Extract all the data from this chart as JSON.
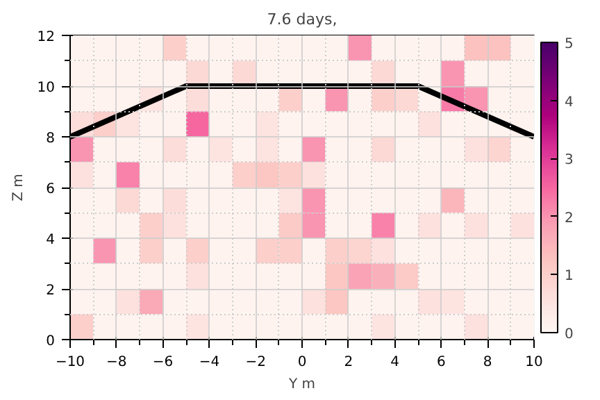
{
  "chart_data": {
    "type": "heatmap",
    "title": "7.6 days,",
    "xlabel": "Y m",
    "ylabel": "Z m",
    "xlim": [
      -10,
      10
    ],
    "ylim": [
      0,
      12
    ],
    "xticks": [
      -10,
      -8,
      -6,
      -4,
      -2,
      0,
      2,
      4,
      6,
      8,
      10
    ],
    "yticks": [
      0,
      2,
      4,
      6,
      8,
      10,
      12
    ],
    "clim": [
      0,
      5
    ],
    "cticks": [
      0,
      1,
      2,
      3,
      4,
      5
    ],
    "grid": true,
    "cells": [
      [
        0.1,
        0.1,
        0.1,
        0.1,
        1,
        0.1,
        0.1,
        0.1,
        0.1,
        0.1,
        0.1,
        0.1,
        2,
        0.1,
        0.1,
        0.1,
        0.1,
        1.3,
        1.3,
        0.1
      ],
      [
        0.1,
        0.1,
        0.1,
        0.1,
        0.1,
        0.8,
        0.1,
        0.8,
        0.1,
        0.1,
        0.1,
        0.1,
        0.1,
        0.8,
        0.1,
        0.1,
        2,
        0.1,
        0.1,
        0.1
      ],
      [
        0.1,
        0.1,
        0.1,
        0.5,
        0.1,
        0.7,
        0.1,
        0.1,
        0.1,
        1,
        0.1,
        2,
        0.1,
        1,
        0.8,
        0.1,
        2.3,
        2,
        0.1,
        0.1
      ],
      [
        0.7,
        1,
        0.5,
        0.1,
        0.1,
        2.5,
        0.1,
        0.1,
        0.5,
        0.1,
        0.1,
        0.1,
        0.1,
        0.1,
        0.1,
        0.6,
        0.1,
        0.1,
        0.1,
        0.1
      ],
      [
        2,
        0.1,
        0.1,
        0.1,
        0.7,
        0.1,
        0.5,
        0.1,
        0.5,
        0.1,
        2,
        0.1,
        0.1,
        0.8,
        0.1,
        0.1,
        0.1,
        0.6,
        0.9,
        0.1
      ],
      [
        0.6,
        0.1,
        2.2,
        0.1,
        0.1,
        0.1,
        0.1,
        1,
        1.2,
        1,
        0.6,
        0.1,
        0.1,
        0.1,
        0.1,
        0.1,
        0.1,
        0.1,
        0.1,
        0.1
      ],
      [
        0.1,
        0.1,
        0.8,
        0.1,
        0.7,
        0.1,
        0.1,
        0.1,
        0.1,
        0.5,
        2,
        0.1,
        0.1,
        0.1,
        0.1,
        0.1,
        1.5,
        0.1,
        0.1,
        0.1
      ],
      [
        0.1,
        0.1,
        0.1,
        1,
        0.6,
        0.1,
        0.1,
        0.1,
        0.1,
        1.1,
        2,
        0.1,
        0.1,
        2.2,
        0.1,
        0.6,
        0.1,
        0.6,
        0.1,
        0.6
      ],
      [
        0.1,
        2,
        0.1,
        1,
        0.1,
        1,
        0.1,
        0.1,
        1,
        1,
        0.1,
        1,
        0.9,
        0.6,
        0.1,
        0.1,
        0.1,
        0.1,
        0.1,
        0.1
      ],
      [
        0.1,
        0.1,
        0.1,
        0.1,
        0.1,
        0.6,
        0.1,
        0.1,
        0.1,
        0.1,
        0.1,
        1.2,
        1.8,
        1.6,
        1.1,
        0.1,
        0.1,
        0.1,
        0.1,
        0.1
      ],
      [
        0.1,
        0.1,
        0.6,
        1.7,
        0.1,
        0.1,
        0.1,
        0.1,
        0.1,
        0.1,
        0.6,
        1.2,
        0.1,
        0.1,
        0.1,
        0.6,
        0.5,
        0.1,
        0.1,
        0.1
      ],
      [
        1,
        0.1,
        0.1,
        0.1,
        0.1,
        0.5,
        0.1,
        0.1,
        0.1,
        0.1,
        0.1,
        0.1,
        0.1,
        0.5,
        0.1,
        0.1,
        0.1,
        0.6,
        0.1,
        0.1
      ]
    ],
    "series": [
      {
        "type": "line",
        "color": "#000000",
        "x": [
          -10,
          -5,
          5,
          10
        ],
        "values": [
          8,
          10,
          10,
          8
        ]
      }
    ]
  }
}
